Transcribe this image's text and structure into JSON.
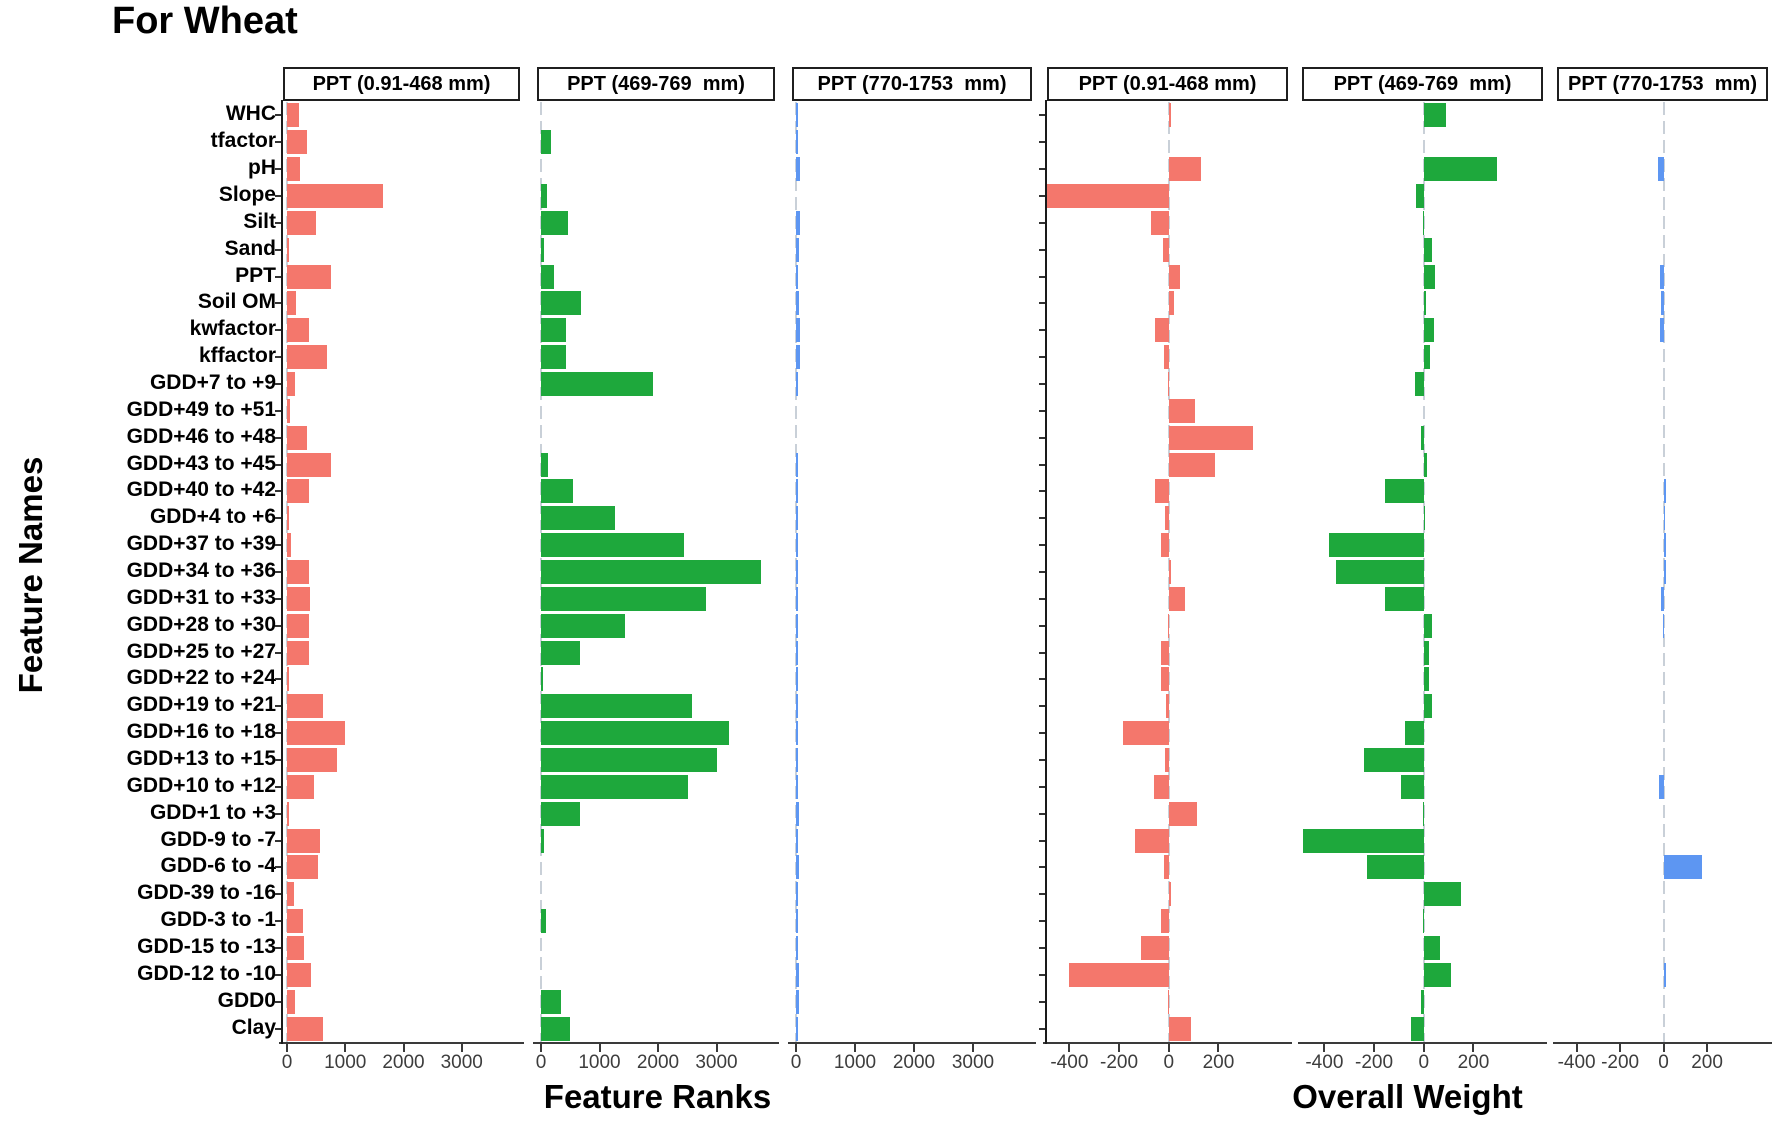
{
  "title": "For Wheat",
  "axes": {
    "y_title": "Feature Names"
  },
  "chart_data": {
    "type": "bar",
    "orientation": "horizontal",
    "grid": false,
    "legend": false,
    "title": "For Wheat",
    "ylabel": "Feature Names",
    "colors": {
      "ranks_red": "#F4776C",
      "ranks_green": "#1EA83C",
      "ranks_blue": "#5D96F2",
      "zero_line": "#c9d0d8",
      "axis": "#3a3a3a",
      "text": "#000000"
    },
    "categories": [
      "WHC",
      "tfactor",
      "pH",
      "Slope",
      "Silt",
      "Sand",
      "PPT",
      "Soil OM",
      "kwfactor",
      "kffactor",
      "GDD+7 to +9",
      "GDD+49 to +51",
      "GDD+46 to +48",
      "GDD+43 to +45",
      "GDD+40 to +42",
      "GDD+4 to +6",
      "GDD+37 to +39",
      "GDD+34 to +36",
      "GDD+31 to +33",
      "GDD+28 to +30",
      "GDD+25 to +27",
      "GDD+22 to +24",
      "GDD+19 to +21",
      "GDD+16 to +18",
      "GDD+13 to +15",
      "GDD+10 to +12",
      "GDD+1 to +3",
      "GDD-9 to -7",
      "GDD-6 to -4",
      "GDD-39 to -16",
      "GDD-3 to -1",
      "GDD-15 to -13",
      "GDD-12 to -10",
      "GDD0",
      "Clay"
    ],
    "facet_groups": [
      {
        "axis_title": "Feature Ranks",
        "x_ticks": [
          0,
          1000,
          2000,
          3000
        ],
        "x_domain": [
          0,
          4000
        ]
      },
      {
        "axis_title": "Overall Weight",
        "x_ticks": [
          -400,
          -200,
          0,
          200
        ],
        "x_domain": [
          -490,
          480
        ]
      }
    ],
    "facets": [
      {
        "group": 0,
        "title": "PPT (0.91-468 mm)",
        "color": "#F4776C",
        "values": [
          200,
          340,
          230,
          1650,
          500,
          30,
          750,
          150,
          380,
          680,
          140,
          60,
          340,
          750,
          380,
          25,
          70,
          370,
          400,
          370,
          385,
          25,
          610,
          1000,
          850,
          460,
          20,
          565,
          525,
          115,
          275,
          300,
          405,
          140,
          620
        ]
      },
      {
        "group": 0,
        "title": "PPT (469-769  mm)",
        "color": "#1EA83C",
        "values": [
          0,
          170,
          0,
          100,
          470,
          45,
          230,
          685,
          420,
          420,
          1920,
          0,
          0,
          115,
          555,
          1270,
          2450,
          3760,
          2820,
          1435,
          670,
          30,
          2580,
          3220,
          3005,
          2505,
          675,
          45,
          0,
          0,
          85,
          0,
          0,
          345,
          490
        ]
      },
      {
        "group": 0,
        "title": "PPT (770-1753  mm)",
        "color": "#5D96F2",
        "values": [
          10,
          10,
          60,
          0,
          60,
          50,
          40,
          50,
          60,
          60,
          15,
          0,
          0,
          10,
          15,
          15,
          15,
          15,
          15,
          15,
          15,
          10,
          30,
          30,
          25,
          40,
          50,
          30,
          50,
          20,
          25,
          30,
          45,
          45,
          20
        ]
      },
      {
        "group": 1,
        "title": "PPT (0.91-468 mm)",
        "color": "#F4776C",
        "values": [
          8,
          0,
          130,
          -490,
          -70,
          -25,
          45,
          20,
          -55,
          -20,
          -5,
          105,
          340,
          185,
          -55,
          -15,
          -30,
          10,
          65,
          -5,
          -30,
          -30,
          -10,
          -185,
          -15,
          -60,
          115,
          -135,
          -20,
          10,
          -30,
          -110,
          -400,
          -5,
          90
        ]
      },
      {
        "group": 1,
        "title": "PPT (469-769  mm)",
        "color": "#1EA83C",
        "values": [
          90,
          0,
          295,
          -30,
          -5,
          35,
          45,
          10,
          40,
          25,
          -35,
          0,
          -10,
          15,
          -155,
          5,
          -380,
          -355,
          -155,
          35,
          20,
          20,
          35,
          -75,
          -240,
          -90,
          -5,
          -485,
          -230,
          150,
          -5,
          65,
          110,
          -10,
          -50
        ]
      },
      {
        "group": 1,
        "title": "PPT (770-1753  mm)",
        "color": "#5D96F2",
        "values": [
          0,
          0,
          -25,
          0,
          0,
          0,
          -15,
          -10,
          -15,
          0,
          0,
          0,
          0,
          0,
          10,
          8,
          10,
          10,
          -12,
          -5,
          0,
          0,
          0,
          0,
          0,
          -20,
          0,
          0,
          175,
          0,
          0,
          0,
          10,
          0,
          0
        ]
      }
    ]
  }
}
